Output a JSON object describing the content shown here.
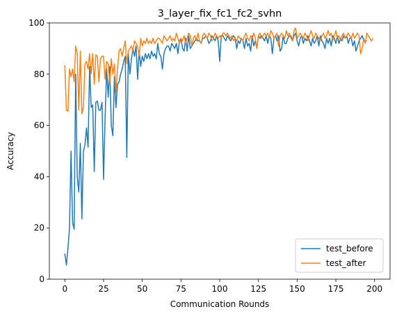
{
  "chart_data": {
    "type": "line",
    "title": "3_layer_fix_fc1_fc2_svhn",
    "xlabel": "Communication Rounds",
    "ylabel": "Accuracy",
    "xlim": [
      -10,
      210
    ],
    "ylim": [
      0,
      100
    ],
    "xticks": [
      0,
      25,
      50,
      75,
      100,
      125,
      150,
      175,
      200
    ],
    "yticks": [
      0,
      20,
      40,
      60,
      80,
      100
    ],
    "grid": false,
    "legend_position": "lower-right",
    "series": [
      {
        "name": "test_before",
        "color": "#1f77b4",
        "values": [
          10,
          5.5,
          12,
          20,
          50,
          22,
          19.5,
          80,
          40,
          34,
          53,
          23.5,
          50,
          52.5,
          59,
          51.5,
          83,
          67,
          68,
          42,
          69,
          69.5,
          66,
          66,
          69,
          39,
          63,
          82,
          71,
          83,
          60,
          56,
          79,
          67,
          76,
          77,
          80,
          82,
          85,
          87,
          47.5,
          88,
          80,
          86,
          90,
          87,
          91,
          78,
          89,
          83,
          87,
          85,
          88,
          86,
          88,
          86,
          89,
          87,
          88,
          86,
          92,
          88,
          87,
          82,
          88,
          90,
          91,
          91,
          89,
          92,
          91,
          90,
          92,
          88,
          93,
          94,
          90,
          89,
          94,
          89,
          95,
          90,
          91,
          92,
          93,
          94,
          93,
          93,
          92,
          94,
          94,
          95,
          94,
          92,
          93,
          95,
          94,
          93,
          95,
          93,
          85,
          95,
          95,
          94,
          93,
          95,
          94,
          93,
          94,
          95,
          94,
          90,
          93,
          92,
          94,
          93,
          90,
          94,
          91,
          92,
          89,
          95,
          91,
          93,
          90,
          95,
          94,
          95,
          94,
          93,
          95,
          92,
          95,
          94,
          88,
          94,
          95,
          93,
          95,
          89,
          90,
          95,
          92,
          92,
          94,
          95,
          95,
          93,
          95,
          96,
          93,
          91,
          94,
          95,
          92,
          94,
          93,
          95,
          93,
          91,
          94,
          92,
          93,
          95,
          91,
          95,
          93,
          92,
          90,
          94,
          92,
          94,
          91,
          95,
          94,
          92,
          95,
          92,
          94,
          93,
          95,
          94,
          95,
          92,
          94,
          94,
          91,
          93,
          89,
          91,
          93,
          94,
          95,
          93,
          93,
          93
        ]
      },
      {
        "name": "test_after",
        "color": "#ff7f0e",
        "values": [
          83.5,
          66,
          65.5,
          82,
          79,
          82,
          77,
          91,
          88,
          66,
          89,
          64.5,
          67,
          84,
          85,
          82,
          88,
          80,
          88,
          76,
          87.5,
          87,
          77,
          86,
          87,
          87,
          78,
          85,
          84,
          76,
          86,
          80,
          84,
          73,
          82,
          89,
          90,
          87,
          90,
          93,
          84,
          89,
          90,
          91,
          89,
          93,
          92,
          91,
          87,
          94,
          91,
          93,
          92,
          94,
          92,
          93,
          92,
          94,
          92,
          93,
          94,
          94,
          93,
          92,
          95,
          94,
          93,
          94,
          95,
          93,
          94,
          93,
          96,
          94,
          92,
          94,
          93,
          95,
          92,
          94,
          96,
          95,
          91,
          94,
          95,
          93,
          96,
          93,
          92,
          95,
          96,
          95,
          94,
          96,
          95,
          93,
          94,
          96,
          95,
          94,
          95,
          94,
          96,
          96,
          95,
          96,
          95,
          94,
          95,
          93,
          94,
          93,
          95,
          94,
          94,
          93,
          95,
          96,
          94,
          93,
          95,
          94,
          96,
          94,
          90,
          95,
          96,
          94,
          95,
          96,
          95,
          96,
          94,
          97,
          96,
          94,
          95,
          96,
          91,
          95,
          96,
          95,
          94,
          97,
          95,
          96,
          94,
          93,
          97,
          98,
          94,
          95,
          96,
          95,
          94,
          96,
          95,
          93,
          95,
          97,
          95,
          94,
          96,
          95,
          94,
          93,
          95,
          96,
          94,
          95,
          97,
          95,
          96,
          93,
          95,
          97,
          94,
          95,
          93,
          95,
          96,
          94,
          95,
          96,
          95,
          94,
          96,
          94,
          95,
          96,
          95,
          88,
          90,
          94,
          92,
          96,
          95,
          94,
          93,
          94
        ]
      }
    ]
  }
}
